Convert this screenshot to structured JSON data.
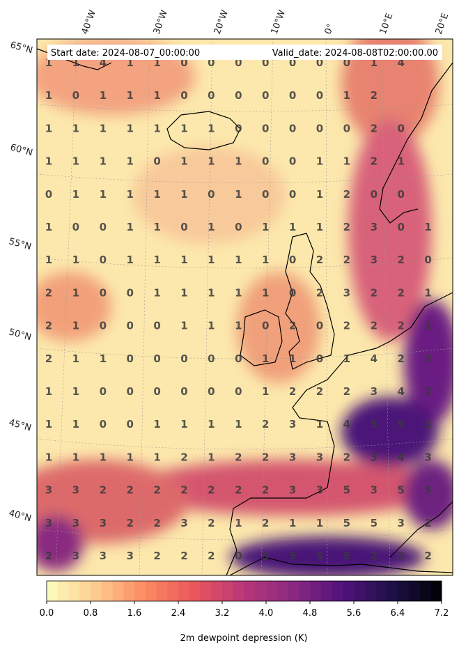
{
  "header": {
    "start_date": "Start date: 2024-08-07_00:00:00",
    "valid_date": "Valid_date: 2024-08-08T02:00:00.00"
  },
  "lon_labels": [
    "40°W",
    "30°W",
    "20°W",
    "10°W",
    "0°",
    "10°E",
    "20°E"
  ],
  "lat_labels": [
    "65°N",
    "60°N",
    "55°N",
    "50°N",
    "45°N",
    "40°N"
  ],
  "colorbar": {
    "label": "2m dewpoint depression (K)",
    "ticks": [
      "0.0",
      "0.8",
      "1.6",
      "2.4",
      "3.2",
      "4.0",
      "4.8",
      "5.6",
      "6.4",
      "7.2"
    ],
    "vmin": 0.0,
    "vmax": 7.2,
    "colormap": "magma_r"
  },
  "grid_values": [
    [
      "1",
      "1",
      "4",
      "1",
      "1",
      "0",
      "0",
      "0",
      "0",
      "0",
      "0",
      "0",
      "1",
      "4"
    ],
    [
      "1",
      "0",
      "1",
      "1",
      "1",
      "0",
      "0",
      "0",
      "0",
      "0",
      "0",
      "1",
      "2",
      ""
    ],
    [
      "1",
      "1",
      "1",
      "1",
      "1",
      "1",
      "1",
      "0",
      "0",
      "0",
      "0",
      "0",
      "2",
      "0"
    ],
    [
      "1",
      "1",
      "1",
      "1",
      "0",
      "1",
      "1",
      "1",
      "0",
      "0",
      "1",
      "1",
      "2",
      "1"
    ],
    [
      "0",
      "1",
      "1",
      "1",
      "1",
      "1",
      "0",
      "1",
      "0",
      "0",
      "1",
      "2",
      "0",
      "0"
    ],
    [
      "1",
      "0",
      "0",
      "1",
      "1",
      "0",
      "1",
      "0",
      "1",
      "1",
      "1",
      "2",
      "3",
      "0",
      "1"
    ],
    [
      "1",
      "1",
      "0",
      "1",
      "1",
      "1",
      "1",
      "1",
      "1",
      "0",
      "2",
      "2",
      "3",
      "2",
      "0"
    ],
    [
      "2",
      "1",
      "0",
      "0",
      "1",
      "1",
      "1",
      "1",
      "1",
      "0",
      "2",
      "3",
      "2",
      "2",
      "1"
    ],
    [
      "2",
      "1",
      "0",
      "0",
      "0",
      "1",
      "1",
      "1",
      "0",
      "2",
      "0",
      "2",
      "2",
      "2",
      "1"
    ],
    [
      "2",
      "1",
      "1",
      "0",
      "0",
      "0",
      "0",
      "0",
      "1",
      "1",
      "0",
      "1",
      "4",
      "2",
      "3"
    ],
    [
      "1",
      "1",
      "0",
      "0",
      "0",
      "0",
      "0",
      "0",
      "1",
      "2",
      "2",
      "2",
      "3",
      "4",
      "2"
    ],
    [
      "1",
      "1",
      "0",
      "0",
      "1",
      "1",
      "1",
      "1",
      "2",
      "3",
      "1",
      "4",
      "5",
      "5",
      "1"
    ],
    [
      "1",
      "1",
      "1",
      "1",
      "1",
      "2",
      "1",
      "2",
      "2",
      "3",
      "3",
      "2",
      "3",
      "4",
      "3"
    ],
    [
      "3",
      "3",
      "2",
      "2",
      "2",
      "2",
      "2",
      "2",
      "2",
      "3",
      "3",
      "5",
      "3",
      "5",
      "5"
    ],
    [
      "3",
      "3",
      "3",
      "2",
      "2",
      "3",
      "2",
      "1",
      "2",
      "1",
      "1",
      "5",
      "5",
      "3",
      "2"
    ],
    [
      "2",
      "3",
      "3",
      "3",
      "2",
      "2",
      "2",
      "0",
      "5",
      "5",
      "5",
      "5",
      "2",
      "2",
      "2"
    ]
  ]
}
